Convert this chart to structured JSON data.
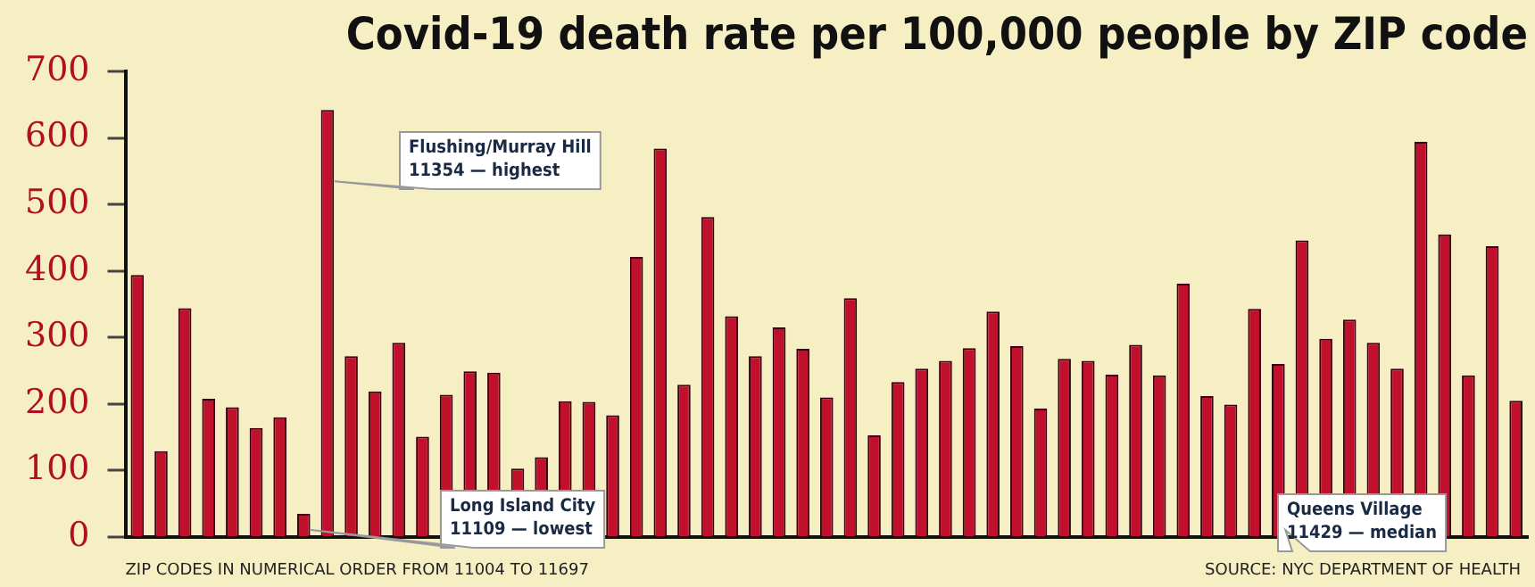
{
  "chart_data": {
    "type": "bar",
    "title": "Covid-19 death rate per 100,000 people by ZIP code",
    "xlabel": "ZIP CODES IN NUMERICAL ORDER FROM 11004 TO 11697",
    "categories": [
      null,
      null,
      null,
      null,
      null,
      null,
      null,
      null,
      null,
      null,
      null,
      null,
      null,
      null,
      null,
      null,
      null,
      null,
      null,
      null,
      null,
      null,
      null,
      null,
      null,
      null,
      null,
      null,
      null,
      null,
      null,
      null,
      null,
      null,
      null,
      null,
      null,
      null,
      null,
      null,
      null,
      null,
      null,
      null,
      null,
      null,
      null,
      null,
      null,
      null,
      null,
      null,
      null,
      null,
      null,
      null,
      null,
      null,
      null
    ],
    "values": [
      394,
      129,
      344,
      208,
      195,
      164,
      180,
      35,
      642,
      272,
      219,
      292,
      151,
      214,
      249,
      247,
      103,
      120,
      204,
      203,
      183,
      421,
      584,
      229,
      481,
      332,
      272,
      315,
      283,
      210,
      359,
      153,
      233,
      253,
      265,
      284,
      339,
      287,
      193,
      268,
      265,
      244,
      289,
      243,
      381,
      212,
      199,
      343,
      260,
      446,
      298,
      327,
      292,
      253,
      594,
      455,
      243,
      437,
      205
    ],
    "color": "#c0102c",
    "ylim": [
      0,
      700
    ],
    "yticks": [
      0,
      100,
      200,
      300,
      400,
      500,
      600,
      700
    ],
    "grid": false,
    "legend": false,
    "annotations": [
      "Flushing/Murray Hill\n11354 — highest",
      "Long Island City\n11109 — lowest",
      "Queens Village\n11429 — median",
      "SOURCE: NYC DEPARTMENT OF HEALTH"
    ]
  }
}
